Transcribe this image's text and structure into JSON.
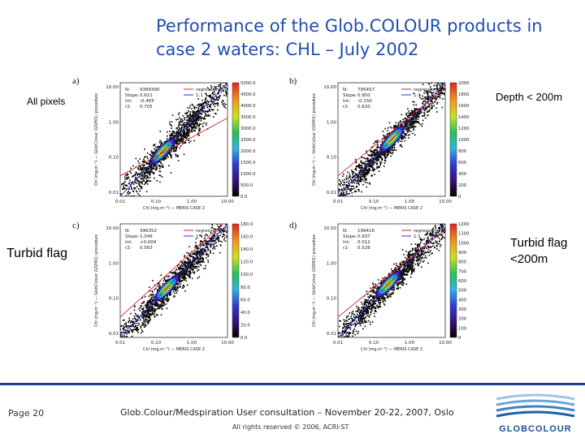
{
  "slide": {
    "title_line1": "Performance of the Glob.COLOUR products in",
    "title_line2": "case 2 waters: CHL – July 2002"
  },
  "labels": {
    "all_pixels": "All pixels",
    "depth": "Depth < 200m",
    "turbid": "Turbid flag",
    "turbid_depth_1": "Turbid flag",
    "turbid_depth_2": "<200m"
  },
  "panels": [
    {
      "letter": "a)",
      "n": "N:",
      "n_val": "9389390",
      "slope": "Slope:",
      "slope_val": "0.621",
      "int": "Int:",
      "int_val": "-0.465",
      "r2": "r2:",
      "r2_val": "0.705",
      "colorbar": [
        "5000.0",
        "4500.0",
        "4000.0",
        "3500.0",
        "3000.0",
        "2500.0",
        "2000.0",
        "1500.0",
        "1000.0",
        "500.0",
        "0.0"
      ]
    },
    {
      "letter": "b)",
      "n": "N:",
      "n_val": "795457",
      "slope": "Slope:",
      "slope_val": "0.950",
      "int": "Int:",
      "int_val": "-0.150",
      "r2": "r2:",
      "r2_val": "0.620",
      "colorbar": [
        "2000",
        "1800",
        "1600",
        "1400",
        "1200",
        "1000",
        "800",
        "600",
        "400",
        "200",
        "0"
      ]
    },
    {
      "letter": "c)",
      "n": "N:",
      "n_val": "346352",
      "slope": "Slope:",
      "slope_val": "1.046",
      "int": "Int:",
      "int_val": "+0.004",
      "r2": "r2:",
      "r2_val": "0.563",
      "colorbar": [
        "180.0",
        "160.0",
        "140.0",
        "120.0",
        "100.0",
        "80.0",
        "60.0",
        "40.0",
        "20.0",
        "0.0"
      ]
    },
    {
      "letter": "d)",
      "n": "N:",
      "n_val": "199416",
      "slope": "Slope:",
      "slope_val": "0.937",
      "int": "Int:",
      "int_val": "0.012",
      "r2": "r2:",
      "r2_val": "0.526",
      "colorbar": [
        "1200",
        "1100",
        "1000",
        "900",
        "800",
        "700",
        "600",
        "500",
        "400",
        "300",
        "200",
        "100",
        "0"
      ]
    }
  ],
  "plot_text": {
    "legend_regression": "regression line",
    "legend_11": "1:1",
    "xlabel": "Chl (mg.m⁻³) — MERIS CASE 2",
    "ylabel": "Chl (mg.m⁻³) — GlobColour (GSM01) procedure",
    "xticks": [
      "0.01",
      "0.10",
      "1.00",
      "10.00"
    ],
    "yticks": [
      "10.00",
      "1.00",
      "0.10",
      "0.01"
    ]
  },
  "footer": {
    "page": "Page 20",
    "event": "Glob.Colour/Medspiration User consultation – November 20-22, 2007, Oslo",
    "rights": "All rights reserved © 2006, ACRI-ST",
    "logo_text": "GLOBCOLOUR"
  },
  "colors": {
    "title": "#1f4fb0",
    "footer_line": "#1f3f8c",
    "regression_line": "#d9262c",
    "one_to_one_line": "#2630d9"
  }
}
